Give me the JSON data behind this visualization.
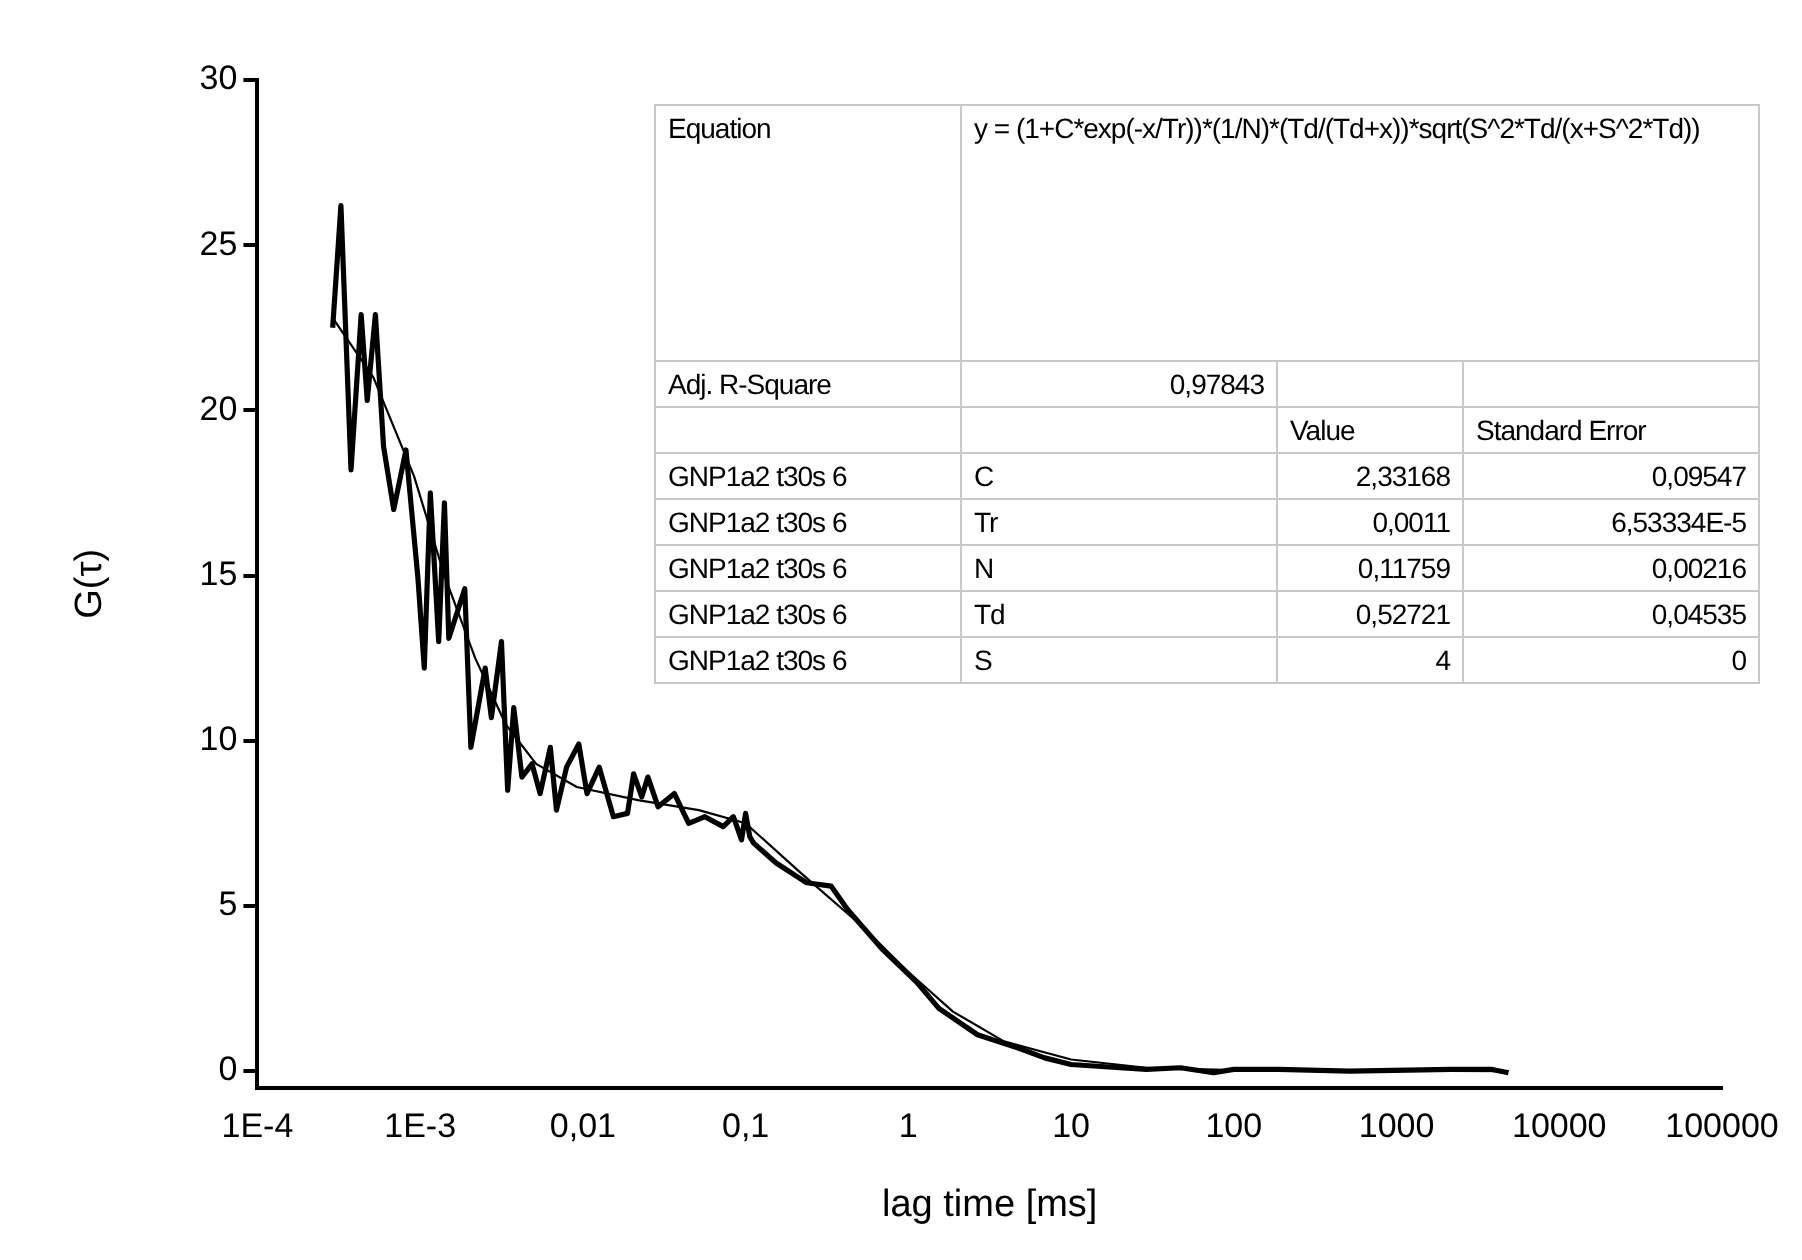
{
  "chart_data": {
    "type": "line",
    "xlabel": "lag time [ms]",
    "ylabel": "G(τ)",
    "series": [
      {
        "color": "#000000",
        "x": [
          0.00029,
          0.000326,
          0.000376,
          0.000434,
          0.000473,
          0.000531,
          0.000596,
          0.000688,
          0.000818,
          0.00097,
          0.00106,
          0.001155,
          0.0013,
          0.00141,
          0.0015,
          0.00188,
          0.00205,
          0.00251,
          0.00274,
          0.00316,
          0.00345,
          0.00376,
          0.00422,
          0.00487,
          0.00546,
          0.00631,
          0.00688,
          0.00794,
          0.00944,
          0.0106,
          0.0126,
          0.0154,
          0.0188,
          0.0205,
          0.023,
          0.0251,
          0.029,
          0.0365,
          0.0447,
          0.0562,
          0.0729,
          0.0841,
          0.0944,
          0.1,
          0.106,
          0.112,
          0.154,
          0.205,
          0.237,
          0.335,
          0.422,
          0.688,
          1.12,
          1.54,
          2.66,
          4.73,
          6.88,
          10,
          20,
          29,
          47,
          75,
          100,
          188,
          516,
          2175,
          3870,
          4870
        ],
        "values": [
          22.5,
          26.2,
          18.2,
          22.9,
          20.3,
          22.9,
          18.9,
          17.0,
          18.8,
          14.9,
          12.2,
          17.5,
          13.0,
          17.2,
          13.1,
          14.6,
          9.8,
          12.2,
          10.7,
          13.0,
          8.5,
          11.0,
          8.9,
          9.3,
          8.4,
          9.8,
          7.9,
          9.2,
          9.9,
          8.4,
          9.2,
          7.7,
          7.8,
          9.0,
          8.3,
          8.9,
          8.0,
          8.4,
          7.5,
          7.7,
          7.4,
          7.7,
          7.0,
          7.8,
          7.1,
          6.9,
          6.3,
          5.9,
          5.7,
          5.6,
          4.9,
          3.7,
          2.7,
          1.9,
          1.1,
          0.7,
          0.4,
          0.2,
          0.1,
          0.05,
          0.1,
          -0.05,
          0.05,
          0.05,
          0,
          0.05,
          0.05,
          -0.05
        ]
      },
      {
        "color": "#000000",
        "x": [
          0.00029,
          0.000516,
          0.000918,
          0.00141,
          0.00218,
          0.00335,
          0.00516,
          0.00918,
          0.0218,
          0.0516,
          0.1,
          0.218,
          0.516,
          1,
          1.88,
          3.87,
          10,
          29,
          100,
          4870
        ],
        "values": [
          22.8,
          21,
          18,
          15,
          12.5,
          10.5,
          9.3,
          8.6,
          8.2,
          7.9,
          7.5,
          6.0,
          4.4,
          3.0,
          1.8,
          0.9,
          0.35,
          0.1,
          0.03,
          0
        ]
      }
    ],
    "log": "x",
    "xlim": [
      0.0001,
      100000.0
    ],
    "xticks": [
      {
        "value": 0.0001,
        "label": "1E-4"
      },
      {
        "value": 0.001,
        "label": "1E-3"
      },
      {
        "value": 0.01,
        "label": "0,01"
      },
      {
        "value": 0.1,
        "label": "0,1"
      },
      1,
      10,
      100,
      1000,
      10000,
      100000
    ],
    "ylim": [
      -0.5,
      30
    ],
    "yticks": [
      0,
      5,
      10,
      15,
      20,
      25,
      30
    ],
    "grid": false,
    "legend": false,
    "marker": "none",
    "line_style": "solid",
    "annotations": [
      "Equation",
      "y = (1+C*exp(-x/Tr))*(1/N)*(Td/(Td+x))*sqrt(S^2*Td/(x+S^2*Td))",
      "Adj. R-Square",
      "0,97843",
      "Value",
      "Standard Error",
      "GNP1a2 t30s 6",
      "C",
      "2,33168",
      "0,09547",
      "GNP1a2 t30s 6",
      "Tr",
      "0,0011",
      "6,53334E-5",
      "GNP1a2 t30s 6",
      "N",
      "0,11759",
      "0,00216",
      "GNP1a2 t30s 6",
      "Td",
      "0,52721",
      "0,04535",
      "GNP1a2 t30s 6",
      "S",
      "4",
      "0"
    ]
  }
}
